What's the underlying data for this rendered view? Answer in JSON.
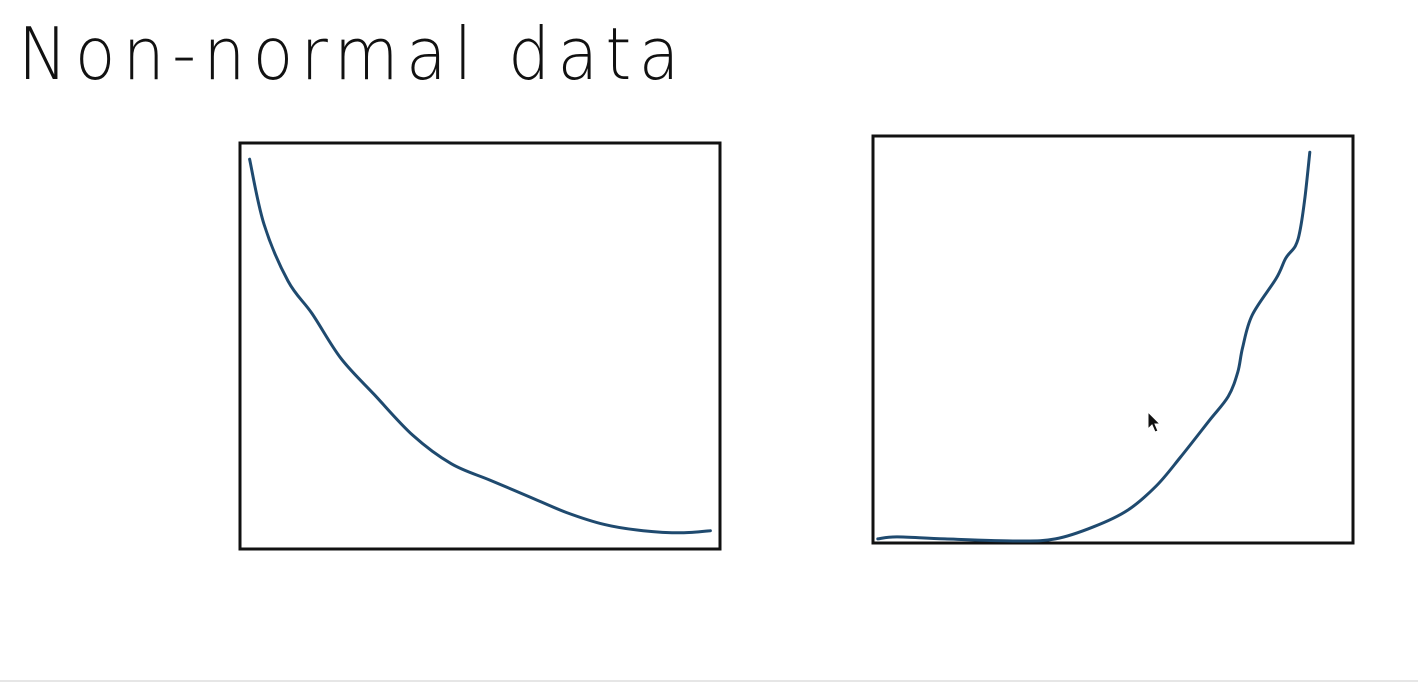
{
  "title": "Non-normal data",
  "colors": {
    "curve": "#1f4a6f",
    "box": "#111111",
    "background": "#ffffff"
  },
  "cursor_icon": "arrow-pointer-icon",
  "diagrams": [
    {
      "id": "left-plot",
      "shape": "decreasing convex curve",
      "curve": [
        [
          0.02,
          0.96
        ],
        [
          0.05,
          0.8
        ],
        [
          0.1,
          0.66
        ],
        [
          0.15,
          0.58
        ],
        [
          0.21,
          0.47
        ],
        [
          0.28,
          0.38
        ],
        [
          0.36,
          0.28
        ],
        [
          0.44,
          0.21
        ],
        [
          0.52,
          0.17
        ],
        [
          0.6,
          0.13
        ],
        [
          0.68,
          0.09
        ],
        [
          0.76,
          0.06
        ],
        [
          0.84,
          0.045
        ],
        [
          0.92,
          0.04
        ],
        [
          0.98,
          0.045
        ]
      ]
    },
    {
      "id": "right-plot",
      "shape": "increasing convex curve",
      "curve": [
        [
          0.01,
          0.01
        ],
        [
          0.05,
          0.015
        ],
        [
          0.15,
          0.01
        ],
        [
          0.3,
          0.005
        ],
        [
          0.38,
          0.01
        ],
        [
          0.46,
          0.04
        ],
        [
          0.53,
          0.08
        ],
        [
          0.59,
          0.14
        ],
        [
          0.64,
          0.21
        ],
        [
          0.7,
          0.3
        ],
        [
          0.74,
          0.36
        ],
        [
          0.76,
          0.42
        ],
        [
          0.77,
          0.48
        ],
        [
          0.79,
          0.56
        ],
        [
          0.84,
          0.65
        ],
        [
          0.86,
          0.7
        ],
        [
          0.88,
          0.73
        ],
        [
          0.89,
          0.77
        ],
        [
          0.9,
          0.85
        ],
        [
          0.91,
          0.96
        ]
      ]
    }
  ]
}
